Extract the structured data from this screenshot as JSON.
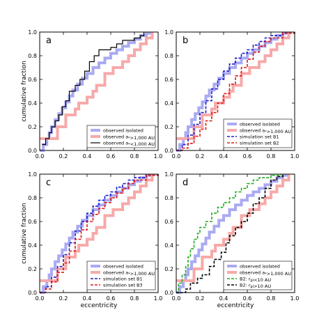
{
  "figure": {
    "ylabel": "cumulative fraction",
    "xlabel": "eccentricity"
  },
  "chart_data": [
    {
      "type": "line",
      "panel_label": "a",
      "xlim": [
        0,
        1
      ],
      "ylim": [
        0,
        1
      ],
      "xticks": [
        "0.0",
        "0.2",
        "0.4",
        "0.6",
        "0.8",
        "1.0"
      ],
      "yticks": [
        "0.0",
        "0.2",
        "0.4",
        "0.6",
        "0.8",
        "1.0"
      ],
      "legend_position": "lower right",
      "series": [
        {
          "name": "observed isolated",
          "color": "#aaaaf2",
          "width": 4,
          "style": "solid",
          "x": [
            0,
            0.03,
            0.06,
            0.08,
            0.1,
            0.13,
            0.16,
            0.19,
            0.22,
            0.25,
            0.28,
            0.32,
            0.36,
            0.4,
            0.45,
            0.5,
            0.55,
            0.6,
            0.65,
            0.7,
            0.75,
            0.8,
            0.85,
            0.9,
            0.93
          ],
          "y": [
            0,
            0.05,
            0.1,
            0.15,
            0.2,
            0.26,
            0.31,
            0.36,
            0.41,
            0.46,
            0.51,
            0.56,
            0.61,
            0.65,
            0.7,
            0.74,
            0.78,
            0.82,
            0.85,
            0.88,
            0.91,
            0.94,
            0.97,
            0.99,
            1.0
          ]
        },
        {
          "name": "observed a_{*}>1,000 AU",
          "color": "#f7a9a9",
          "width": 4,
          "style": "solid",
          "x": [
            0,
            0.1,
            0.15,
            0.22,
            0.3,
            0.33,
            0.4,
            0.45,
            0.48,
            0.55,
            0.62,
            0.7,
            0.75,
            0.8,
            0.85,
            0.9,
            0.95
          ],
          "y": [
            0.1,
            0.1,
            0.2,
            0.3,
            0.35,
            0.4,
            0.45,
            0.5,
            0.55,
            0.65,
            0.7,
            0.75,
            0.8,
            0.85,
            0.9,
            0.95,
            1.0
          ]
        },
        {
          "name": "observed a_{*}<1,000 AU",
          "color": "#000000",
          "width": 1.2,
          "style": "solid",
          "x": [
            0.02,
            0.05,
            0.08,
            0.1,
            0.13,
            0.16,
            0.19,
            0.22,
            0.25,
            0.3,
            0.34,
            0.38,
            0.42,
            0.46,
            0.5,
            0.6,
            0.65,
            0.7,
            0.8,
            0.85,
            0.88
          ],
          "y": [
            0.05,
            0.1,
            0.15,
            0.2,
            0.25,
            0.3,
            0.37,
            0.42,
            0.5,
            0.55,
            0.6,
            0.67,
            0.75,
            0.8,
            0.85,
            0.87,
            0.9,
            0.93,
            0.95,
            0.97,
            1.0
          ]
        }
      ]
    },
    {
      "type": "line",
      "panel_label": "b",
      "xlim": [
        0,
        1
      ],
      "ylim": [
        0,
        1
      ],
      "xticks": [
        "0.0",
        "0.2",
        "0.4",
        "0.6",
        "0.8",
        "1.0"
      ],
      "yticks": [
        "0.0",
        "0.2",
        "0.4",
        "0.6",
        "0.8",
        "1.0"
      ],
      "legend_position": "lower right",
      "series": [
        {
          "name": "observed isolated",
          "color": "#aaaaf2",
          "width": 4,
          "style": "solid",
          "x": [
            0,
            0.03,
            0.06,
            0.08,
            0.1,
            0.13,
            0.16,
            0.19,
            0.22,
            0.25,
            0.28,
            0.32,
            0.36,
            0.4,
            0.45,
            0.5,
            0.55,
            0.6,
            0.65,
            0.7,
            0.75,
            0.8,
            0.85,
            0.9,
            0.93
          ],
          "y": [
            0,
            0.05,
            0.1,
            0.15,
            0.2,
            0.26,
            0.31,
            0.36,
            0.41,
            0.46,
            0.51,
            0.56,
            0.61,
            0.65,
            0.7,
            0.74,
            0.78,
            0.82,
            0.85,
            0.88,
            0.91,
            0.94,
            0.97,
            0.99,
            1.0
          ]
        },
        {
          "name": "observed a_{*}>1,000 AU",
          "color": "#f7a9a9",
          "width": 4,
          "style": "solid",
          "x": [
            0,
            0.1,
            0.15,
            0.22,
            0.3,
            0.33,
            0.4,
            0.45,
            0.48,
            0.55,
            0.62,
            0.7,
            0.75,
            0.8,
            0.85,
            0.9,
            0.95
          ],
          "y": [
            0.1,
            0.1,
            0.2,
            0.3,
            0.35,
            0.4,
            0.45,
            0.5,
            0.55,
            0.65,
            0.7,
            0.75,
            0.8,
            0.85,
            0.9,
            0.95,
            1.0
          ]
        },
        {
          "name": "simulation set B1",
          "color": "#1a1acc",
          "width": 1.6,
          "style": "dashed",
          "x": [
            0,
            0.05,
            0.1,
            0.15,
            0.2,
            0.25,
            0.3,
            0.35,
            0.4,
            0.45,
            0.5,
            0.55,
            0.6,
            0.65,
            0.7,
            0.75,
            0.8,
            0.9,
            1.0
          ],
          "y": [
            0,
            0.05,
            0.13,
            0.22,
            0.32,
            0.42,
            0.52,
            0.6,
            0.67,
            0.73,
            0.78,
            0.82,
            0.85,
            0.89,
            0.92,
            0.95,
            0.97,
            0.99,
            1.0
          ]
        },
        {
          "name": "simulation set B2",
          "color": "#dd1a1a",
          "width": 1.6,
          "style": "dashed",
          "x": [
            0,
            0.05,
            0.1,
            0.15,
            0.2,
            0.25,
            0.3,
            0.35,
            0.4,
            0.45,
            0.5,
            0.55,
            0.6,
            0.65,
            0.7,
            0.75,
            0.8,
            0.9,
            1.0
          ],
          "y": [
            0,
            0.02,
            0.06,
            0.12,
            0.18,
            0.25,
            0.32,
            0.4,
            0.48,
            0.56,
            0.63,
            0.7,
            0.77,
            0.83,
            0.88,
            0.92,
            0.95,
            0.99,
            1.0
          ]
        }
      ]
    },
    {
      "type": "line",
      "panel_label": "c",
      "xlim": [
        0,
        1
      ],
      "ylim": [
        0,
        1
      ],
      "xticks": [
        "0.0",
        "0.2",
        "0.4",
        "0.6",
        "0.8",
        "1.0"
      ],
      "yticks": [
        "0.0",
        "0.2",
        "0.4",
        "0.6",
        "0.8",
        "1.0"
      ],
      "legend_position": "lower right",
      "series": [
        {
          "name": "observed isolated",
          "color": "#aaaaf2",
          "width": 4,
          "style": "solid",
          "x": [
            0,
            0.03,
            0.06,
            0.08,
            0.1,
            0.13,
            0.16,
            0.19,
            0.22,
            0.25,
            0.28,
            0.32,
            0.36,
            0.4,
            0.45,
            0.5,
            0.55,
            0.6,
            0.65,
            0.7,
            0.75,
            0.8,
            0.85,
            0.9,
            0.93
          ],
          "y": [
            0,
            0.05,
            0.1,
            0.15,
            0.2,
            0.26,
            0.31,
            0.36,
            0.41,
            0.46,
            0.51,
            0.56,
            0.61,
            0.65,
            0.7,
            0.74,
            0.78,
            0.82,
            0.85,
            0.88,
            0.91,
            0.94,
            0.97,
            0.99,
            1.0
          ]
        },
        {
          "name": "observed a_{*}>1,000 AU",
          "color": "#f7a9a9",
          "width": 4,
          "style": "solid",
          "x": [
            0,
            0.1,
            0.15,
            0.22,
            0.3,
            0.33,
            0.4,
            0.45,
            0.48,
            0.55,
            0.62,
            0.7,
            0.75,
            0.8,
            0.85,
            0.9,
            0.95
          ],
          "y": [
            0.1,
            0.1,
            0.2,
            0.3,
            0.35,
            0.4,
            0.45,
            0.5,
            0.55,
            0.65,
            0.7,
            0.75,
            0.8,
            0.85,
            0.9,
            0.95,
            1.0
          ]
        },
        {
          "name": "simulation set B1",
          "color": "#1a1acc",
          "width": 1.6,
          "style": "dashed",
          "x": [
            0,
            0.05,
            0.1,
            0.15,
            0.2,
            0.25,
            0.3,
            0.35,
            0.4,
            0.45,
            0.5,
            0.55,
            0.6,
            0.65,
            0.7,
            0.75,
            0.8,
            0.9,
            1.0
          ],
          "y": [
            0,
            0.05,
            0.13,
            0.22,
            0.32,
            0.42,
            0.52,
            0.6,
            0.67,
            0.73,
            0.78,
            0.82,
            0.85,
            0.89,
            0.92,
            0.95,
            0.97,
            0.99,
            1.0
          ]
        },
        {
          "name": "simulation set B3",
          "color": "#dd1a1a",
          "width": 1.6,
          "style": "dashed",
          "x": [
            0,
            0.05,
            0.1,
            0.15,
            0.2,
            0.25,
            0.3,
            0.35,
            0.4,
            0.45,
            0.5,
            0.55,
            0.6,
            0.65,
            0.7,
            0.75,
            0.8,
            0.9,
            1.0
          ],
          "y": [
            0,
            0.03,
            0.09,
            0.17,
            0.25,
            0.35,
            0.45,
            0.53,
            0.6,
            0.66,
            0.71,
            0.76,
            0.8,
            0.84,
            0.88,
            0.92,
            0.95,
            0.99,
            1.0
          ]
        }
      ]
    },
    {
      "type": "line",
      "panel_label": "d",
      "xlim": [
        0,
        1
      ],
      "ylim": [
        0,
        1
      ],
      "xticks": [
        "0.0",
        "0.2",
        "0.4",
        "0.6",
        "0.8",
        "1.0"
      ],
      "yticks": [
        "0.0",
        "0.2",
        "0.4",
        "0.6",
        "0.8",
        "1.0"
      ],
      "legend_position": "lower right",
      "series": [
        {
          "name": "observed isolated",
          "color": "#aaaaf2",
          "width": 4,
          "style": "solid",
          "x": [
            0,
            0.03,
            0.06,
            0.08,
            0.1,
            0.13,
            0.16,
            0.19,
            0.22,
            0.25,
            0.28,
            0.32,
            0.36,
            0.4,
            0.45,
            0.5,
            0.55,
            0.6,
            0.65,
            0.7,
            0.75,
            0.8,
            0.85,
            0.9,
            0.93
          ],
          "y": [
            0,
            0.05,
            0.1,
            0.15,
            0.2,
            0.26,
            0.31,
            0.36,
            0.41,
            0.46,
            0.51,
            0.56,
            0.61,
            0.65,
            0.7,
            0.74,
            0.78,
            0.82,
            0.85,
            0.88,
            0.91,
            0.94,
            0.97,
            0.99,
            1.0
          ]
        },
        {
          "name": "observed a_{*}>1,000 AU",
          "color": "#f7a9a9",
          "width": 4,
          "style": "solid",
          "x": [
            0,
            0.1,
            0.15,
            0.22,
            0.3,
            0.33,
            0.4,
            0.45,
            0.48,
            0.55,
            0.62,
            0.7,
            0.75,
            0.8,
            0.85,
            0.9,
            0.95
          ],
          "y": [
            0.1,
            0.1,
            0.2,
            0.3,
            0.35,
            0.4,
            0.45,
            0.5,
            0.55,
            0.65,
            0.7,
            0.75,
            0.8,
            0.85,
            0.9,
            0.95,
            1.0
          ]
        },
        {
          "name": "B2: r_{pl}<10 AU",
          "color": "#22aa22",
          "width": 1.6,
          "style": "dashed",
          "x": [
            0,
            0.02,
            0.05,
            0.08,
            0.1,
            0.12,
            0.15,
            0.18,
            0.2,
            0.25,
            0.3,
            0.35,
            0.4,
            0.45,
            0.5,
            0.55,
            0.6,
            0.65,
            0.7,
            0.8,
            0.88
          ],
          "y": [
            0,
            0.08,
            0.15,
            0.22,
            0.3,
            0.37,
            0.45,
            0.5,
            0.55,
            0.6,
            0.67,
            0.72,
            0.76,
            0.8,
            0.85,
            0.88,
            0.92,
            0.95,
            0.97,
            0.99,
            1.0
          ]
        },
        {
          "name": "B2: r_{pl}>10 AU",
          "color": "#000000",
          "width": 1.6,
          "style": "dashed",
          "x": [
            0,
            0.08,
            0.12,
            0.18,
            0.22,
            0.28,
            0.32,
            0.38,
            0.42,
            0.45,
            0.5,
            0.55,
            0.6,
            0.65,
            0.7,
            0.75,
            0.8,
            0.85,
            0.9
          ],
          "y": [
            0,
            0.03,
            0.08,
            0.12,
            0.15,
            0.22,
            0.28,
            0.34,
            0.42,
            0.48,
            0.55,
            0.6,
            0.67,
            0.75,
            0.8,
            0.88,
            0.95,
            0.98,
            1.0
          ]
        }
      ]
    }
  ]
}
